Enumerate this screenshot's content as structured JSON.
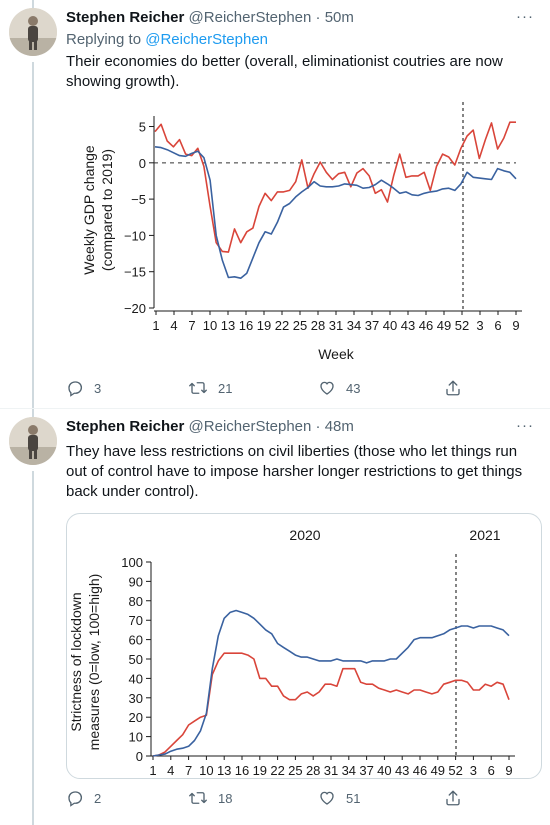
{
  "tweets": [
    {
      "name": "Stephen Reicher",
      "handle": "@ReicherStephen",
      "dot": "·",
      "time": "50m",
      "more": "···",
      "replying_prefix": "Replying to",
      "replying_to": "@ReicherStephen",
      "text": "Their economies do better (overall, eliminationist coutries are now showing growth).",
      "replies": "3",
      "retweets": "21",
      "likes": "43"
    },
    {
      "name": "Stephen Reicher",
      "handle": "@ReicherStephen",
      "dot": "·",
      "time": "48m",
      "more": "···",
      "text": "They have less restrictions on civil liberties (those who let things run out of control have to impose harsher longer restrictions to get things back under control).",
      "replies": "2",
      "retweets": "18",
      "likes": "51"
    }
  ],
  "icons": [
    "reply-icon",
    "retweet-icon",
    "like-icon",
    "share-icon",
    "more-icon"
  ],
  "colors": {
    "red_series": "#d9453a",
    "blue_series": "#3a62a0",
    "link": "#1d9bf0",
    "muted": "#536471"
  },
  "chart_data": [
    {
      "type": "line",
      "title": "",
      "xlabel": "Week",
      "ylabel": "Weekly GDP change (compared to 2019)",
      "ylim": [
        -20,
        7
      ],
      "yticks": [
        "5",
        "0",
        "−5",
        "−10",
        "−15",
        "−20"
      ],
      "yticks_values": [
        5,
        0,
        -5,
        -10,
        -15,
        -20
      ],
      "xticks": [
        "1",
        "4",
        "7",
        "10",
        "13",
        "16",
        "19",
        "22",
        "25",
        "28",
        "31",
        "34",
        "37",
        "40",
        "43",
        "46",
        "49",
        "52",
        "3",
        "6",
        "9"
      ],
      "grid": false,
      "reference_lines": [
        "y=0 dashed",
        "vertical dashed at week 52"
      ],
      "series": [
        {
          "color": "red",
          "values": [
            4.3,
            5.3,
            3.0,
            2.2,
            3.2,
            1.2,
            1.0,
            2.0,
            -0.5,
            -6,
            -11,
            -12.2,
            -12.3,
            -9.1,
            -11,
            -9.5,
            -9,
            -6,
            -4.2,
            -5.2,
            -4,
            -4,
            -3.8,
            -2.6,
            0.4,
            -3.5,
            -1.5,
            0.1,
            -1.3,
            -2.3,
            -1.5,
            -1.3,
            -3.3,
            -1.4,
            -0.8,
            -1.8,
            -4.2,
            -3.7,
            -5.4,
            -1.8,
            1.2,
            -2,
            -1.8,
            -1.8,
            -1.3,
            -3.8,
            -0.5,
            1.2,
            0.8,
            -0.3,
            2,
            3.7,
            4.5,
            0.6,
            3.2,
            5.5,
            1.9,
            3.4,
            5.6,
            5.6
          ]
        },
        {
          "color": "blue",
          "values": [
            2.2,
            2.1,
            1.8,
            1.4,
            1.0,
            0.9,
            1.3,
            1.6,
            0.7,
            -2.4,
            -10,
            -13.4,
            -15.8,
            -15.7,
            -15.9,
            -15.2,
            -13.1,
            -11,
            -9.5,
            -9.8,
            -8.2,
            -6.1,
            -5.6,
            -4.7,
            -4.0,
            -3.4,
            -2.6,
            -3.2,
            -3.3,
            -3.3,
            -3.2,
            -2.9,
            -3.0,
            -3.1,
            -3.5,
            -3.4,
            -3.0,
            -2.4,
            -2.9,
            -3.5,
            -4.2,
            -4.0,
            -4.4,
            -4.5,
            -4.2,
            -4.0,
            -3.9,
            -3.6,
            -3.5,
            -3.8,
            -2.9,
            -1.3,
            -2.0,
            -2.1,
            -2.2,
            -2.3,
            -0.8,
            -1.1,
            -1.3,
            -2.2
          ]
        }
      ]
    },
    {
      "type": "line",
      "title": "",
      "top_labels": [
        "2020",
        "2021"
      ],
      "xlabel": "",
      "ylabel": "Strictness of lockdown measures (0=low, 100=high)",
      "ylim": [
        0,
        100
      ],
      "yticks": [
        "100",
        "90",
        "80",
        "70",
        "60",
        "50",
        "40",
        "30",
        "20",
        "10",
        "0"
      ],
      "yticks_values": [
        100,
        90,
        80,
        70,
        60,
        50,
        40,
        30,
        20,
        10,
        0
      ],
      "xticks": [
        "1",
        "4",
        "7",
        "10",
        "13",
        "16",
        "19",
        "22",
        "25",
        "28",
        "31",
        "34",
        "37",
        "40",
        "43",
        "46",
        "49",
        "52",
        "3",
        "6",
        "9"
      ],
      "grid": false,
      "reference_lines": [
        "vertical dashed at week 52"
      ],
      "series": [
        {
          "color": "red",
          "values": [
            0,
            0.5,
            2,
            5,
            8,
            11,
            16,
            18,
            20,
            21,
            42,
            49,
            53,
            53,
            53,
            53,
            52,
            50,
            40,
            40,
            36,
            36,
            31,
            29,
            29,
            32,
            33,
            31,
            33,
            37,
            37,
            36,
            45,
            45,
            45,
            38,
            37,
            37,
            35,
            34,
            33,
            34,
            33,
            32,
            34,
            34,
            33,
            32,
            33,
            37,
            38,
            39,
            39,
            38,
            34,
            34,
            37,
            36,
            38,
            37,
            29
          ]
        },
        {
          "color": "blue",
          "values": [
            0,
            0.5,
            1,
            2.5,
            3.5,
            4,
            5,
            8,
            13,
            22,
            45,
            62,
            71,
            74,
            75,
            74,
            73,
            71,
            68,
            65,
            63,
            58,
            56,
            54,
            52,
            51,
            51,
            50,
            49,
            49,
            49,
            50,
            49,
            49,
            49,
            49,
            48,
            49,
            49,
            49,
            50,
            50,
            53,
            56,
            60,
            61,
            61,
            61,
            62,
            63,
            65,
            66,
            67,
            67,
            66,
            67,
            67,
            67,
            66,
            65,
            62
          ]
        }
      ]
    }
  ]
}
